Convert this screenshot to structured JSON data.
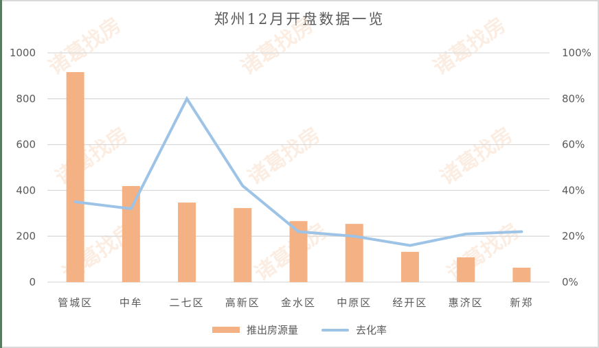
{
  "chart_data": {
    "type": "bar",
    "title": "郑州12月开盘数据一览",
    "categories": [
      "管城区",
      "中牟",
      "二七区",
      "高新区",
      "金水区",
      "中原区",
      "经开区",
      "惠济区",
      "新郑"
    ],
    "series": [
      {
        "name": "推出房源量",
        "type": "bar",
        "axis": "left",
        "color": "#f4b183",
        "values": [
          916,
          419,
          347,
          323,
          266,
          254,
          132,
          108,
          63
        ]
      },
      {
        "name": "去化率",
        "type": "line",
        "axis": "right",
        "color": "#9dc3e6",
        "values": [
          0.35,
          0.32,
          0.8,
          0.42,
          0.22,
          0.2,
          0.16,
          0.21,
          0.22
        ]
      }
    ],
    "xlabel": "",
    "ylabel": "",
    "ylim": [
      0,
      1000
    ],
    "y2lim": [
      0,
      1
    ],
    "yticks": [
      "0",
      "200",
      "400",
      "600",
      "800",
      "1000"
    ],
    "y2ticks": [
      "0%",
      "20%",
      "40%",
      "60%",
      "80%",
      "100%"
    ],
    "grid": true,
    "legend_position": "bottom"
  },
  "title": "郑州12月开盘数据一览",
  "legend": {
    "bar_label": "推出房源量",
    "line_label": "去化率"
  },
  "watermark": "诸葛找房"
}
